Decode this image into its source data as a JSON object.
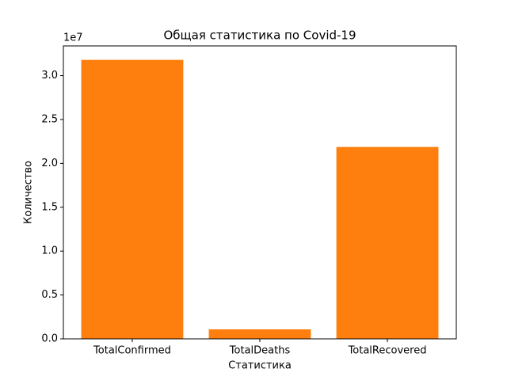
{
  "chart_data": {
    "type": "bar",
    "title": "Общая статистика по Covid-19",
    "x_label": "Статистика",
    "y_label": "Количество",
    "y_offset_label": "1e7",
    "categories": [
      "TotalConfirmed",
      "TotalDeaths",
      "TotalRecovered"
    ],
    "values": [
      31800000,
      1080000,
      21870000
    ],
    "color": "#ff7f0e",
    "ylim": [
      0,
      33390000
    ],
    "yticks": [
      {
        "value": 0,
        "label": "0.0"
      },
      {
        "value": 5000000,
        "label": "0.5"
      },
      {
        "value": 10000000,
        "label": "1.0"
      },
      {
        "value": 15000000,
        "label": "1.5"
      },
      {
        "value": 20000000,
        "label": "2.0"
      },
      {
        "value": 25000000,
        "label": "2.5"
      },
      {
        "value": 30000000,
        "label": "3.0"
      }
    ],
    "grid": false
  }
}
